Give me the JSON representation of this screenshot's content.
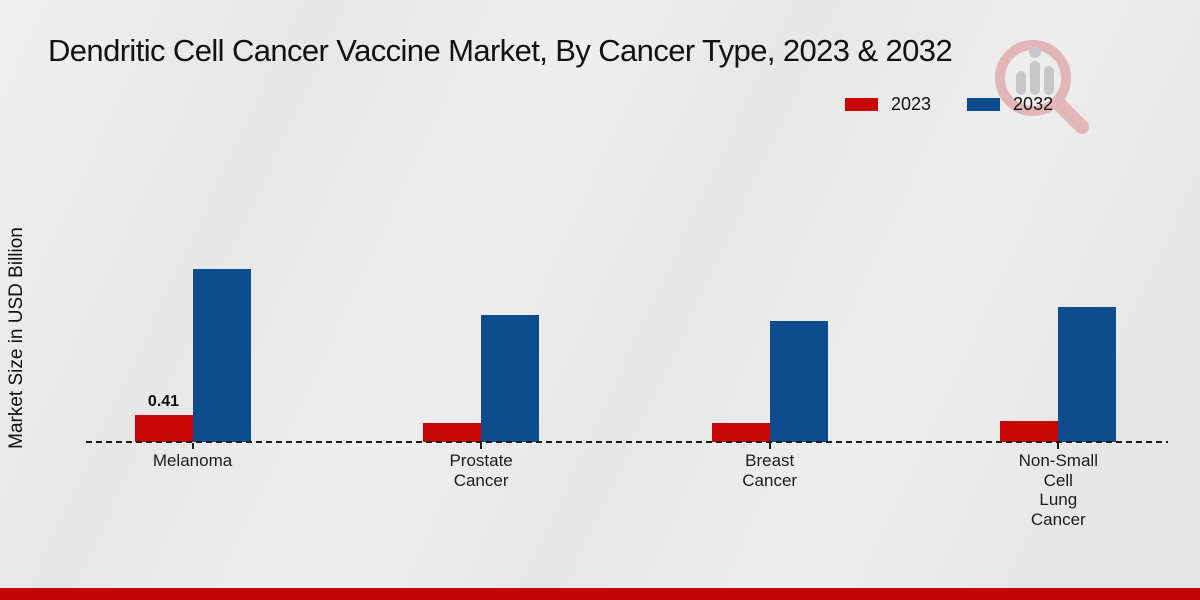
{
  "chart_data": {
    "type": "bar",
    "title": "Dendritic Cell Cancer Vaccine Market, By Cancer Type, 2023 & 2032",
    "ylabel": "Market Size in USD Billion",
    "xlabel": "",
    "categories": [
      "Melanoma",
      "Prostate Cancer",
      "Breast Cancer",
      "Non-Small Cell Lung Cancer"
    ],
    "category_label_lines": [
      [
        "Melanoma"
      ],
      [
        "Prostate",
        "Cancer"
      ],
      [
        "Breast",
        "Cancer"
      ],
      [
        "Non-Small",
        "Cell",
        "Lung",
        "Cancer"
      ]
    ],
    "series": [
      {
        "name": "2023",
        "color": "#c90606",
        "values": [
          0.41,
          0.29,
          0.29,
          0.32
        ]
      },
      {
        "name": "2032",
        "color": "#0d4c8d",
        "values": [
          2.63,
          1.93,
          1.84,
          2.05
        ]
      }
    ],
    "ylim": [
      0,
      3.2
    ],
    "grid": false,
    "legend_position": "top-right",
    "baseline_style": "dashed",
    "shown_value_labels": [
      {
        "series": "2023",
        "category": "Melanoma",
        "text": "0.41"
      }
    ]
  },
  "footer": {
    "band_color": "#c10505"
  },
  "watermark": {
    "icon": "magnifier-bar-chart-logo"
  }
}
